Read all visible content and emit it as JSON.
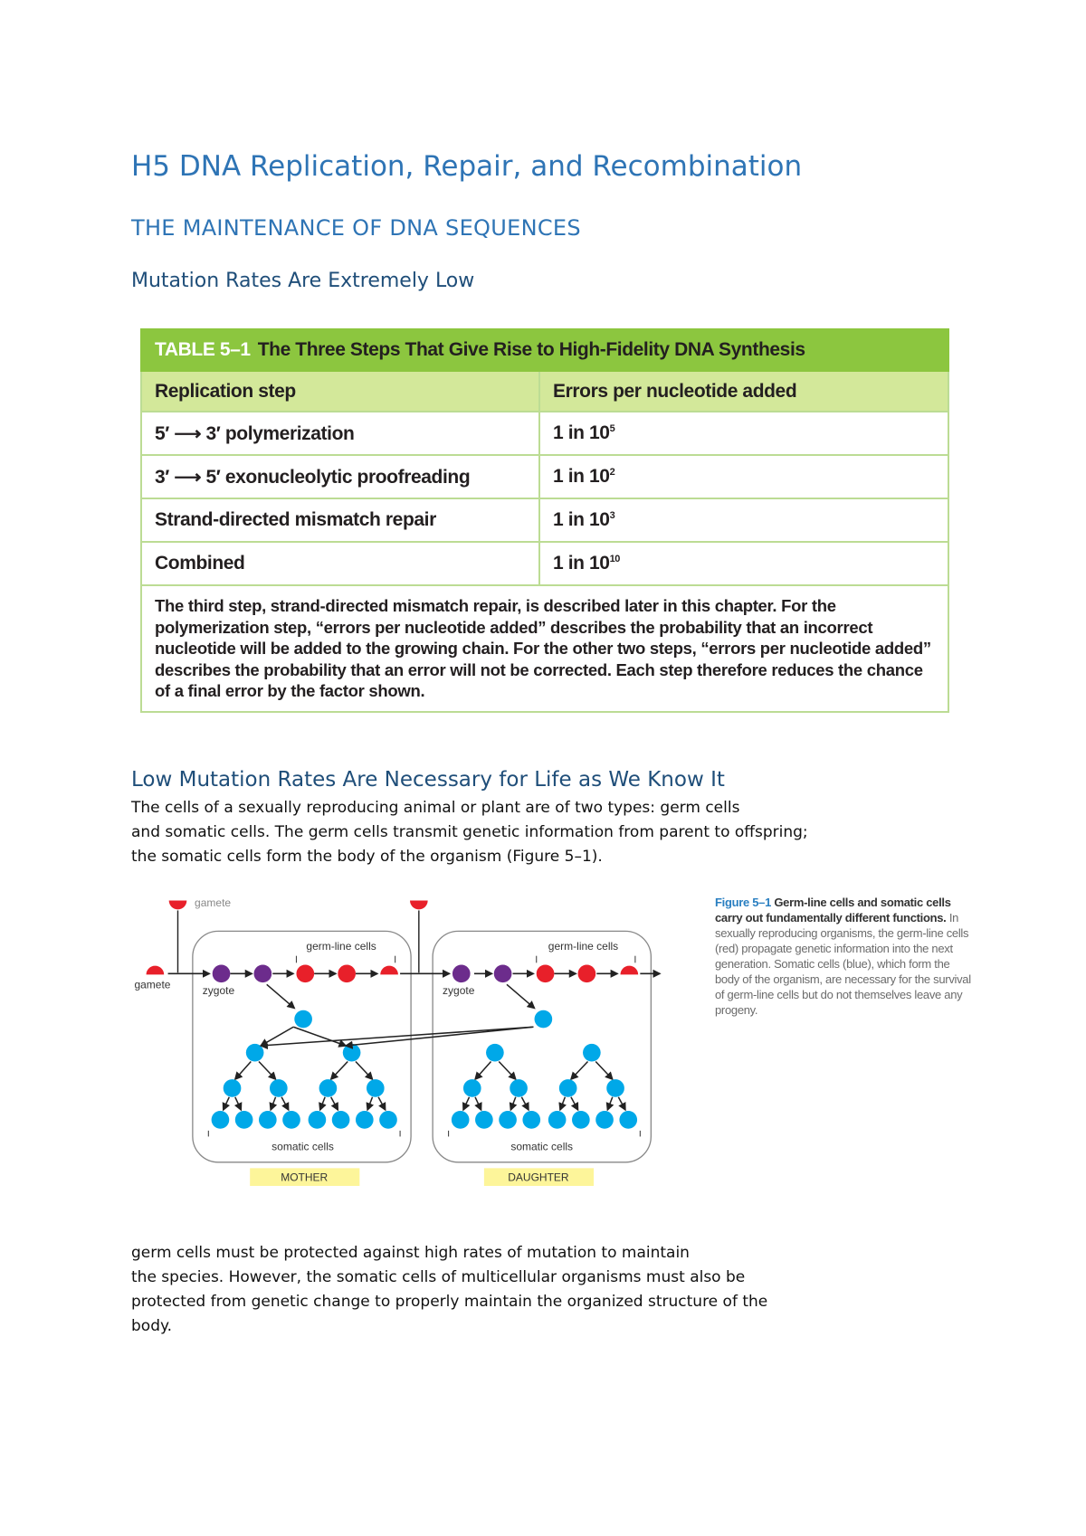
{
  "title": "H5 DNA Replication, Repair, and Recombination",
  "section": "THE MAINTENANCE OF DNA SEQUENCES",
  "subsection1": "Mutation Rates Are Extremely Low",
  "table": {
    "label": "TABLE 5–1",
    "title": "The Three Steps That Give Rise to High-Fidelity DNA Synthesis",
    "headers": [
      "Replication step",
      "Errors per nucleotide added"
    ],
    "rows": [
      {
        "step": "5′ ⟶ 3′ polymerization",
        "base": "1 in 10",
        "exp": "5"
      },
      {
        "step": "3′ ⟶ 5′ exonucleolytic proofreading",
        "base": "1 in 10",
        "exp": "2"
      },
      {
        "step": "Strand-directed mismatch repair",
        "base": "1 in 10",
        "exp": "3"
      },
      {
        "step": "Combined",
        "base": "1 in 10",
        "exp": "10"
      }
    ],
    "note": "The third step, strand-directed mismatch repair, is described later in this chapter. For the polymerization step, “errors per nucleotide added” describes the probability that an incorrect nucleotide will be added to the growing chain. For the other two steps, “errors per nucleotide added” describes the probability that an error will not be corrected. Each step therefore reduces the chance of a final error by the factor shown."
  },
  "subsection2": "Low Mutation Rates Are Necessary for Life as We Know It",
  "paragraph1": [
    "The cells of a sexually reproducing animal or plant are of two types: germ cells",
    "and somatic cells. The germ cells transmit genetic information from parent to offspring;",
    "the somatic cells form the body of the organism (Figure 5–1)."
  ],
  "figure": {
    "labels": {
      "gamete_top": "gamete",
      "gamete_left": "gamete",
      "zygote": "zygote",
      "germ_line": "germ-line cells",
      "somatic": "somatic cells",
      "mother": "MOTHER",
      "daughter": "DAUGHTER"
    },
    "colors": {
      "germ": "#e8202a",
      "zygote": "#6c2c8c",
      "somatic": "#00a8e8",
      "label_box": "#fdf59a"
    },
    "caption": {
      "figure_label": "Figure 5–1",
      "bold": "Germ-line cells and somatic cells carry out fundamentally different functions.",
      "text": "In sexually reproducing organisms, the germ-line cells (red) propagate genetic information into the next generation. Somatic cells (blue), which form the body of the organism, are necessary for the survival of germ-line cells but do not themselves leave any progeny."
    }
  },
  "paragraph2": [
    "germ cells must be protected against high rates of mutation to maintain",
    "the species. However, the somatic cells of multicellular organisms must also be",
    "protected from genetic change to properly maintain the organized structure of the",
    "body."
  ]
}
